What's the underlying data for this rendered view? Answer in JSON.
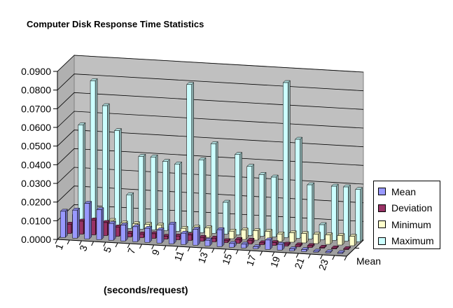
{
  "chart_data": {
    "type": "bar",
    "subtype": "3d-clustered-column",
    "title": "Computer Disk Response Time Statistics",
    "xlabel": "(seconds/request)",
    "ylabel": "",
    "depth_label": "Mean",
    "ylim": [
      0,
      0.09
    ],
    "y_ticks": [
      "0.0000",
      "0.0100",
      "0.0200",
      "0.0300",
      "0.0400",
      "0.0500",
      "0.0600",
      "0.0700",
      "0.0800",
      "0.0900"
    ],
    "categories": [
      "1",
      "2",
      "3",
      "4",
      "5",
      "6",
      "7",
      "8",
      "9",
      "10",
      "11",
      "12",
      "13",
      "14",
      "15",
      "16",
      "17",
      "18",
      "19",
      "20",
      "21",
      "22",
      "23",
      "24"
    ],
    "x_tick_labels": [
      "1",
      "3",
      "5",
      "7",
      "9",
      "11",
      "13",
      "15",
      "17",
      "19",
      "21",
      "23"
    ],
    "legend_position": "right",
    "series": [
      {
        "name": "Mean",
        "color": "#9999ff",
        "values": [
          0.014,
          0.015,
          0.019,
          0.016,
          0.009,
          0.0085,
          0.008,
          0.0075,
          0.007,
          0.0105,
          0.006,
          0.0085,
          0.003,
          0.009,
          0.002,
          0.002,
          0.001,
          0.005,
          0.003,
          0.001,
          0.001,
          0.0005,
          0.0005,
          0.0005
        ]
      },
      {
        "name": "Deviation",
        "color": "#993366",
        "values": [
          0.005,
          0.007,
          0.008,
          0.007,
          0.005,
          0.002,
          0.002,
          0.0025,
          0.0015,
          0.002,
          0.003,
          0.002,
          0.002,
          0.001,
          0.002,
          0.002,
          0.001,
          0.0015,
          0.001,
          0.001,
          0.001,
          0.0005,
          0.0005,
          0.0005
        ]
      },
      {
        "name": "Minimum",
        "color": "#ffffcc",
        "values": [
          0.008,
          0.005,
          0.007,
          0.006,
          0.005,
          0.005,
          0.005,
          0.005,
          0.005,
          0.004,
          0.005,
          0.005,
          0.004,
          0.004,
          0.005,
          0.005,
          0.005,
          0.004,
          0.005,
          0.005,
          0.005,
          0.005,
          0.005,
          0.005
        ]
      },
      {
        "name": "Maximum",
        "color": "#ccffff",
        "values": [
          0.054,
          0.078,
          0.065,
          0.052,
          0.018,
          0.039,
          0.039,
          0.037,
          0.036,
          0.079,
          0.039,
          0.048,
          0.017,
          0.043,
          0.037,
          0.033,
          0.032,
          0.083,
          0.053,
          0.029,
          0.008,
          0.029,
          0.029,
          0.028
        ]
      }
    ]
  }
}
